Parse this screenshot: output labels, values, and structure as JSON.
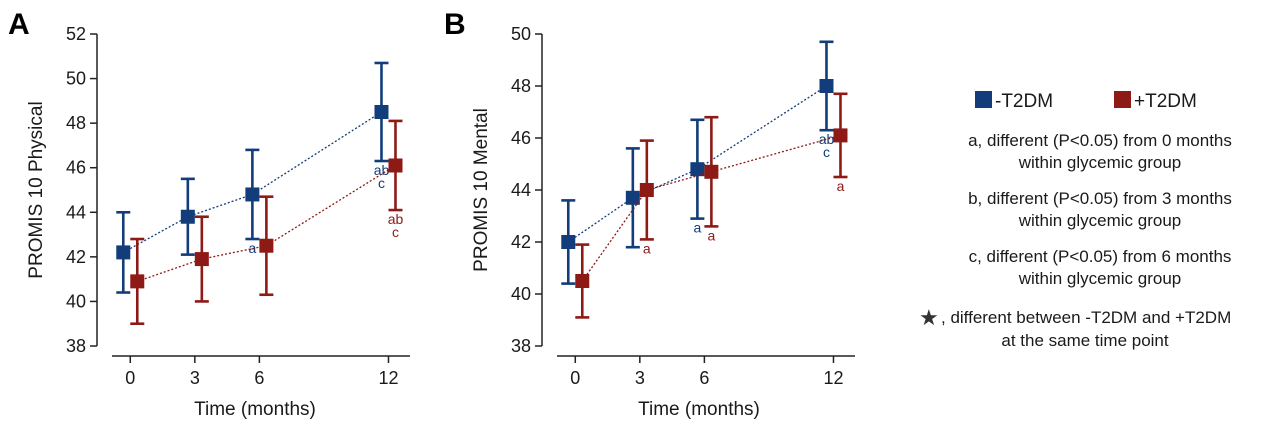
{
  "colors": {
    "minus": "#123d7a",
    "plus": "#8e1a16"
  },
  "chart_data": [
    {
      "panel": "A",
      "type": "scatter",
      "ylabel": "PROMIS 10 Physical",
      "xlabel": "Time (months)",
      "xticks": [
        0,
        3,
        6,
        12
      ],
      "xlim": [
        -1.5,
        13
      ],
      "ylim": [
        38,
        52
      ],
      "yticks": [
        38,
        40,
        42,
        44,
        46,
        48,
        50,
        52
      ],
      "series": [
        {
          "name": "-T2DM",
          "x": [
            0,
            3,
            6,
            12
          ],
          "y": [
            42.2,
            43.8,
            44.8,
            48.5
          ],
          "err": [
            1.8,
            1.7,
            2.0,
            2.2
          ],
          "labels": [
            "",
            "",
            "a",
            "ab|c"
          ]
        },
        {
          "name": "+T2DM",
          "x": [
            0,
            3,
            6,
            12
          ],
          "y": [
            40.9,
            41.9,
            42.5,
            46.1
          ],
          "err": [
            1.9,
            1.9,
            2.2,
            2.0
          ],
          "labels": [
            "",
            "",
            "",
            "ab|c"
          ]
        }
      ]
    },
    {
      "panel": "B",
      "type": "scatter",
      "ylabel": "PROMIS 10 Mental",
      "xlabel": "Time (months)",
      "xticks": [
        0,
        3,
        6,
        12
      ],
      "xlim": [
        -1.5,
        13
      ],
      "ylim": [
        38,
        50
      ],
      "yticks": [
        38,
        40,
        42,
        44,
        46,
        48,
        50
      ],
      "series": [
        {
          "name": "-T2DM",
          "x": [
            0,
            3,
            6,
            12
          ],
          "y": [
            42.0,
            43.7,
            44.8,
            48.0
          ],
          "err": [
            1.6,
            1.9,
            1.9,
            1.7
          ],
          "labels": [
            "",
            "",
            "a",
            "ab|c"
          ]
        },
        {
          "name": "+T2DM",
          "x": [
            0,
            3,
            6,
            12
          ],
          "y": [
            40.5,
            44.0,
            44.7,
            46.1
          ],
          "err": [
            1.4,
            1.9,
            2.1,
            1.6
          ],
          "labels": [
            "",
            "a",
            "a",
            "a"
          ]
        }
      ]
    }
  ],
  "legend": {
    "entries": [
      "-T2DM",
      "+T2DM"
    ],
    "notes": [
      [
        "a, different (P<0.05) from 0 months",
        "within glycemic group"
      ],
      [
        "b, different (P<0.05) from 3 months",
        "within glycemic group"
      ],
      [
        "c, different (P<0.05) from 6 months",
        "within glycemic group"
      ]
    ],
    "star_symbol": "★",
    "star_note": [
      ", different between -T2DM and +T2DM",
      "at the same time point"
    ]
  }
}
